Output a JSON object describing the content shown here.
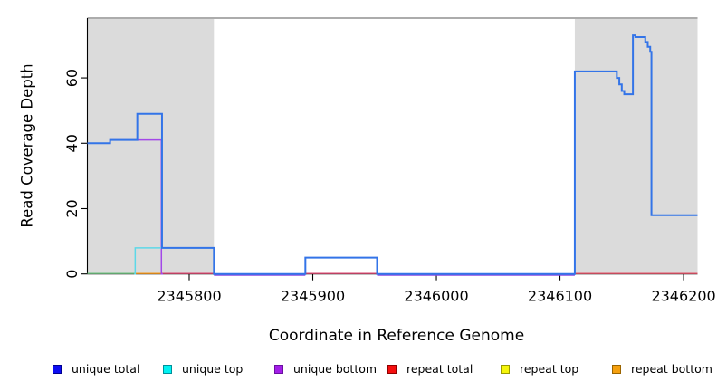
{
  "chart_data": {
    "type": "line",
    "subtype": "step-coverage-plot",
    "title": "",
    "xlabel": "Coordinate in Reference Genome",
    "ylabel": "Read Coverage Depth",
    "xlim": [
      2345717.6,
      2346211.3
    ],
    "ylim": [
      0,
      78.3
    ],
    "x_ticks": [
      2345800,
      2345900,
      2346000,
      2346100,
      2346200
    ],
    "y_ticks": [
      0,
      20,
      40,
      60
    ],
    "grid": false,
    "legend_position": "bottom",
    "shaded_regions": [
      {
        "from": 2345717.6,
        "to": 2345820,
        "color": "#dbdbdb"
      },
      {
        "from": 2346112,
        "to": 2346211.3,
        "color": "#dbdbdb"
      }
    ],
    "top_rule": {
      "value": 78.3,
      "color": "#909090"
    },
    "series": [
      {
        "name": "unique total",
        "color": "#3374e8",
        "width": 2,
        "steps": [
          [
            2345717.6,
            40
          ],
          [
            2345736,
            41
          ],
          [
            2345758,
            49
          ],
          [
            2345778,
            8
          ],
          [
            2345820,
            0
          ],
          [
            2345894,
            5
          ],
          [
            2345952,
            0
          ],
          [
            2346112,
            62
          ],
          [
            2346146,
            60
          ],
          [
            2346148,
            58
          ],
          [
            2346150,
            56
          ],
          [
            2346152,
            55
          ],
          [
            2346159,
            73
          ],
          [
            2346161,
            72.5
          ],
          [
            2346169,
            71
          ],
          [
            2346171,
            69.5
          ],
          [
            2346173,
            68
          ],
          [
            2346174,
            18
          ],
          [
            2346211.3,
            18
          ]
        ]
      },
      {
        "name": "unique top",
        "color": "#5cd8e8",
        "width": 1.5,
        "steps": [
          [
            2345755.5,
            0
          ],
          [
            2345756.3,
            8
          ],
          [
            2345820,
            0
          ],
          [
            2345821,
            0
          ]
        ]
      },
      {
        "name": "unique bottom",
        "color": "#a348e8",
        "width": 1.5,
        "steps": [
          [
            2345717.6,
            40
          ],
          [
            2345736,
            41
          ],
          [
            2345777.5,
            0
          ],
          [
            2345778.8,
            0
          ]
        ]
      },
      {
        "name": "repeat total",
        "color": "#e8403c",
        "width": 1,
        "steps": [
          [
            2345717.6,
            0
          ],
          [
            2346211.3,
            0
          ]
        ]
      },
      {
        "name": "repeat top",
        "color": "#f5e832",
        "width": 1,
        "steps": [
          [
            2345717.6,
            0
          ],
          [
            2346211.3,
            0
          ]
        ]
      },
      {
        "name": "repeat bottom",
        "color": "#f59b1e",
        "width": 1,
        "steps": [
          [
            2345717.6,
            0
          ],
          [
            2346211.3,
            0
          ]
        ]
      }
    ],
    "baseline_render": [
      {
        "from": 2345717.6,
        "to": 2345756,
        "color": "#6fbf7f",
        "dy": -0.5
      },
      {
        "from": 2345756,
        "to": 2345778,
        "color": "#f5981e",
        "dy": -0.5
      },
      {
        "from": 2345778,
        "to": 2345820,
        "color": "#d84a70",
        "dy": -0.5
      },
      {
        "from": 2345820,
        "to": 2345894,
        "color": "#8a4ae0",
        "dy": 1.4
      },
      {
        "from": 2345894,
        "to": 2345952,
        "color": "#d84a70",
        "dy": -0.5
      },
      {
        "from": 2345952,
        "to": 2346112,
        "color": "#8a4ae0",
        "dy": 1.4
      },
      {
        "from": 2346112,
        "to": 2346211.3,
        "color": "#e2556a",
        "dy": -0.5
      }
    ]
  },
  "legend": {
    "items": [
      {
        "label": "unique total",
        "fill": "#0d0df2",
        "border": "#000090"
      },
      {
        "label": "unique top",
        "fill": "#00f2f2",
        "border": "#00909a"
      },
      {
        "label": "unique bottom",
        "fill": "#a31ee8",
        "border": "#6a10a0"
      },
      {
        "label": "repeat total",
        "fill": "#f50f0f",
        "border": "#900000"
      },
      {
        "label": "repeat top",
        "fill": "#f5f50a",
        "border": "#9a9a00"
      },
      {
        "label": "repeat bottom",
        "fill": "#f5a00f",
        "border": "#9a6400"
      }
    ]
  }
}
